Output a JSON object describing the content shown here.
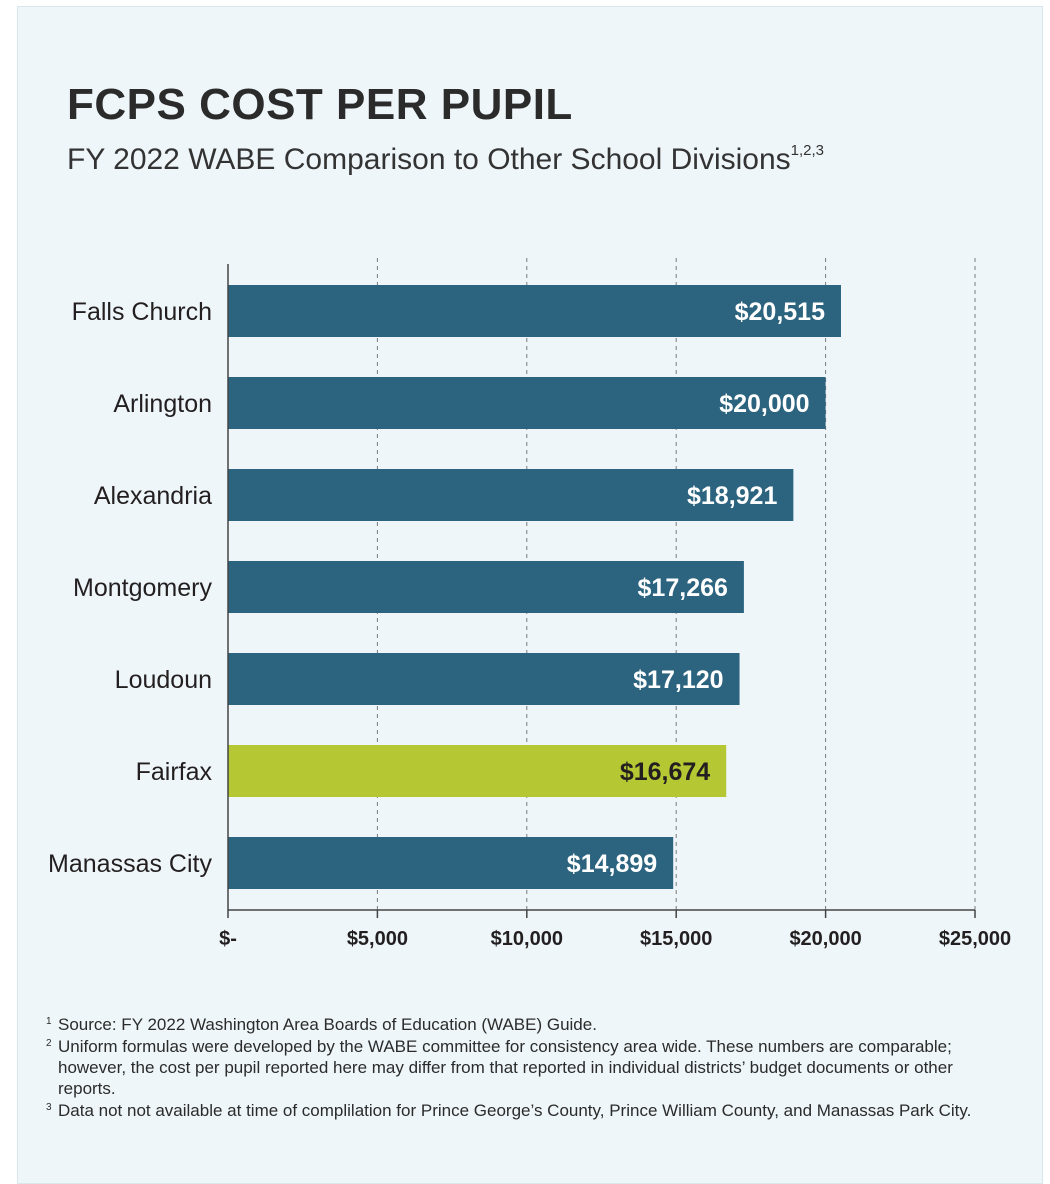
{
  "header": {
    "title": "FCPS COST PER PUPIL",
    "subtitle": "FY 2022 WABE Comparison to Other School Divisions",
    "subtitle_superscript": "1,2,3"
  },
  "colors": {
    "bar_default": "#2c6480",
    "bar_highlight": "#b5c833",
    "label_on_default": "#ffffff",
    "label_on_highlight": "#231f20",
    "background": "#eef6f9",
    "gridline": "#7a7a7a"
  },
  "chart_data": {
    "type": "bar",
    "orientation": "horizontal",
    "categories": [
      "Falls Church",
      "Arlington",
      "Alexandria",
      "Montgomery",
      "Loudoun",
      "Fairfax",
      "Manassas City"
    ],
    "values": [
      20515,
      20000,
      18921,
      17266,
      17120,
      16674,
      14899
    ],
    "value_labels": [
      "$20,515",
      "$20,000",
      "$18,921",
      "$17,266",
      "$17,120",
      "$16,674",
      "$14,899"
    ],
    "highlight_index": 5,
    "x_ticks": [
      0,
      5000,
      10000,
      15000,
      20000,
      25000
    ],
    "x_tick_labels": [
      "$-",
      "$5,000",
      "$10,000",
      "$15,000",
      "$20,000",
      "$25,000"
    ],
    "xlim": [
      0,
      25000
    ],
    "grid": "vertical dashed",
    "legend": "none"
  },
  "footnotes": [
    {
      "num": "1",
      "text": "Source: FY 2022 Washington Area Boards of Education (WABE) Guide."
    },
    {
      "num": "2",
      "text": "Uniform formulas were developed by the WABE committee for consistency area wide. These numbers are comparable; however, the cost per pupil reported here may differ from that reported in individual districts’ budget documents or other reports."
    },
    {
      "num": "3",
      "text": "Data not not available at time of complilation for Prince George’s County, Prince William County, and Manassas Park City."
    }
  ]
}
